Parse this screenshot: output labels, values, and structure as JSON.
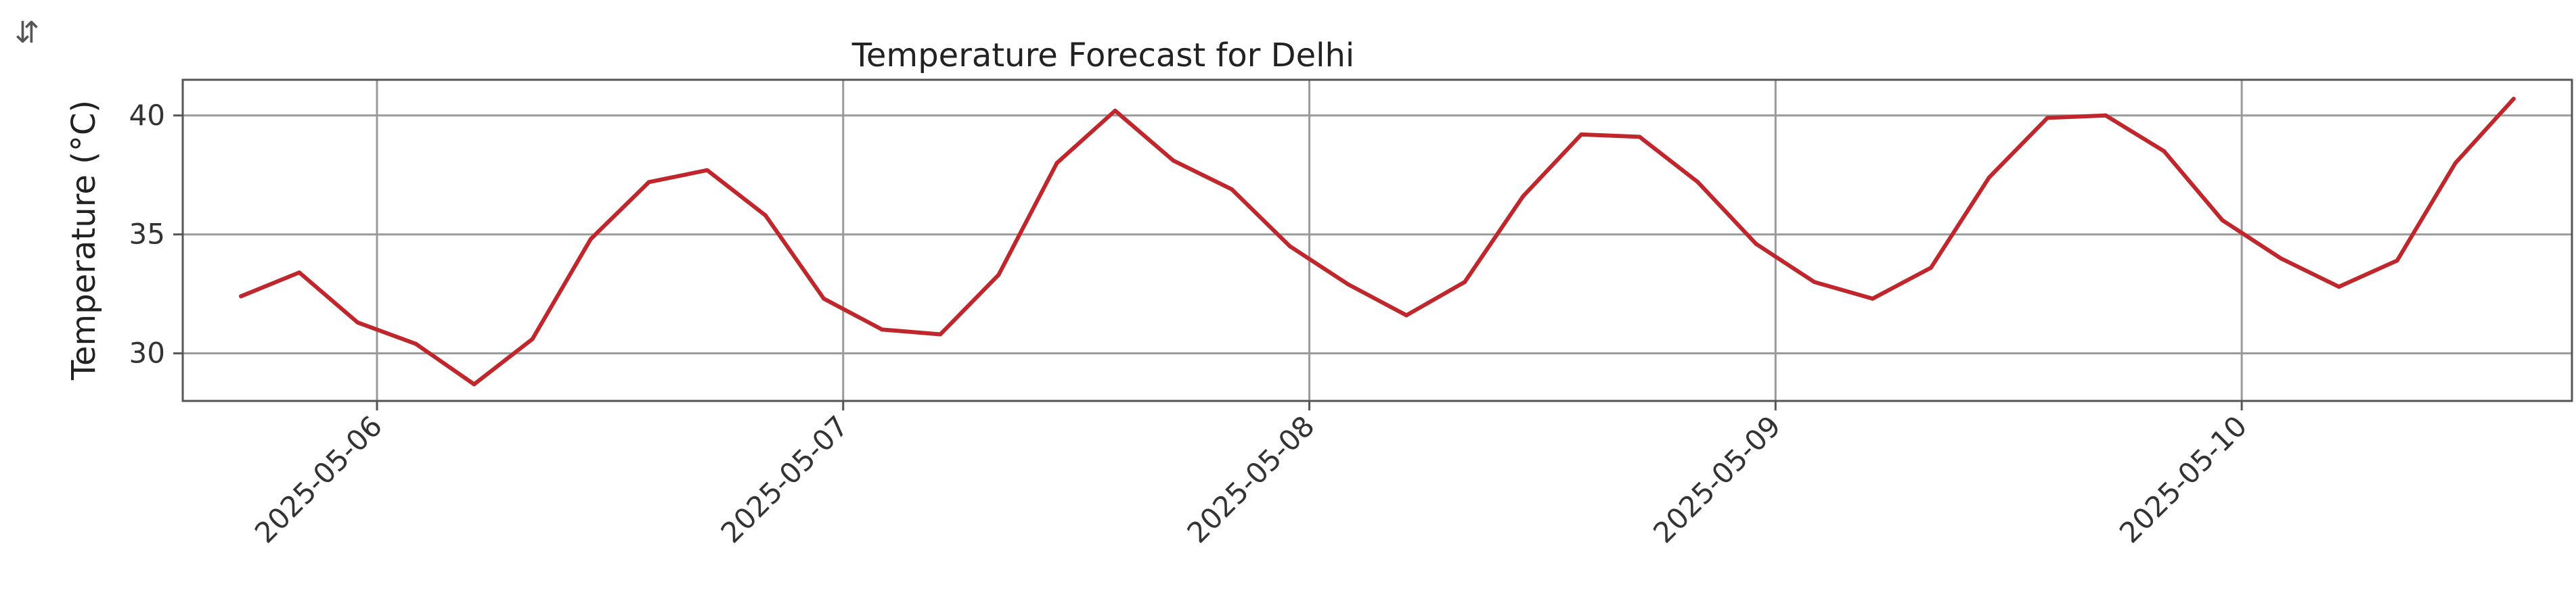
{
  "toolbar": {
    "icon": "adjust-icon",
    "glyph": "⇵"
  },
  "chart_data": {
    "type": "line",
    "title": "Temperature Forecast for Delhi",
    "xlabel": "",
    "ylabel": "Temperature (°C)",
    "x_tick_labels": [
      "2025-05-06",
      "2025-05-07",
      "2025-05-08",
      "2025-05-09",
      "2025-05-10"
    ],
    "y_ticks": [
      30,
      35,
      40
    ],
    "ylim": [
      28,
      41.5
    ],
    "xlim": [
      "2025-05-05 14:00",
      "2025-05-10 17:00"
    ],
    "grid": true,
    "color": "#c0272d",
    "series": [
      {
        "name": "",
        "x": [
          "2025-05-05 17:00",
          "2025-05-05 20:00",
          "2025-05-05 23:00",
          "2025-05-06 02:00",
          "2025-05-06 05:00",
          "2025-05-06 08:00",
          "2025-05-06 11:00",
          "2025-05-06 14:00",
          "2025-05-06 17:00",
          "2025-05-06 20:00",
          "2025-05-06 23:00",
          "2025-05-07 02:00",
          "2025-05-07 05:00",
          "2025-05-07 08:00",
          "2025-05-07 11:00",
          "2025-05-07 14:00",
          "2025-05-07 17:00",
          "2025-05-07 20:00",
          "2025-05-07 23:00",
          "2025-05-08 02:00",
          "2025-05-08 05:00",
          "2025-05-08 08:00",
          "2025-05-08 11:00",
          "2025-05-08 14:00",
          "2025-05-08 17:00",
          "2025-05-08 20:00",
          "2025-05-08 23:00",
          "2025-05-09 02:00",
          "2025-05-09 05:00",
          "2025-05-09 08:00",
          "2025-05-09 11:00",
          "2025-05-09 14:00",
          "2025-05-09 17:00",
          "2025-05-09 20:00",
          "2025-05-09 23:00",
          "2025-05-10 02:00",
          "2025-05-10 05:00",
          "2025-05-10 08:00",
          "2025-05-10 11:00",
          "2025-05-10 14:00"
        ],
        "values": [
          32.4,
          33.4,
          31.3,
          30.4,
          28.7,
          30.6,
          34.8,
          37.2,
          37.7,
          35.8,
          32.3,
          31.0,
          30.8,
          33.3,
          38.0,
          40.2,
          38.1,
          36.9,
          34.5,
          32.9,
          31.6,
          33.0,
          36.6,
          39.2,
          39.1,
          37.2,
          34.6,
          33.0,
          32.3,
          33.6,
          37.4,
          39.9,
          40.0,
          38.5,
          35.6,
          34.0,
          32.8,
          33.9,
          38.0,
          40.7
        ]
      }
    ]
  }
}
